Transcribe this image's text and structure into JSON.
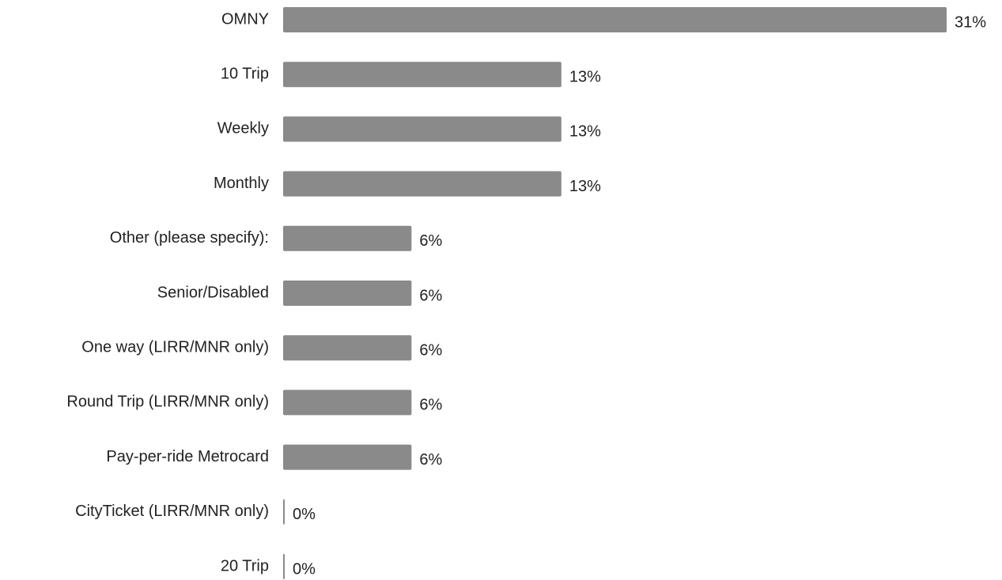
{
  "chart_data": {
    "type": "bar",
    "orientation": "horizontal",
    "categories": [
      "OMNY",
      "10 Trip",
      "Weekly",
      "Monthly",
      "Other (please specify):",
      "Senior/Disabled",
      "One way (LIRR/MNR only)",
      "Round Trip (LIRR/MNR only)",
      "Pay-per-ride Metrocard",
      "CityTicket (LIRR/MNR only)",
      "20 Trip"
    ],
    "values": [
      31,
      13,
      13,
      13,
      6,
      6,
      6,
      6,
      6,
      0,
      0
    ],
    "value_labels": [
      "31%",
      "13%",
      "13%",
      "13%",
      "6%",
      "6%",
      "6%",
      "6%",
      "6%",
      "0%",
      "0%"
    ],
    "color": "#8a8a8a"
  }
}
